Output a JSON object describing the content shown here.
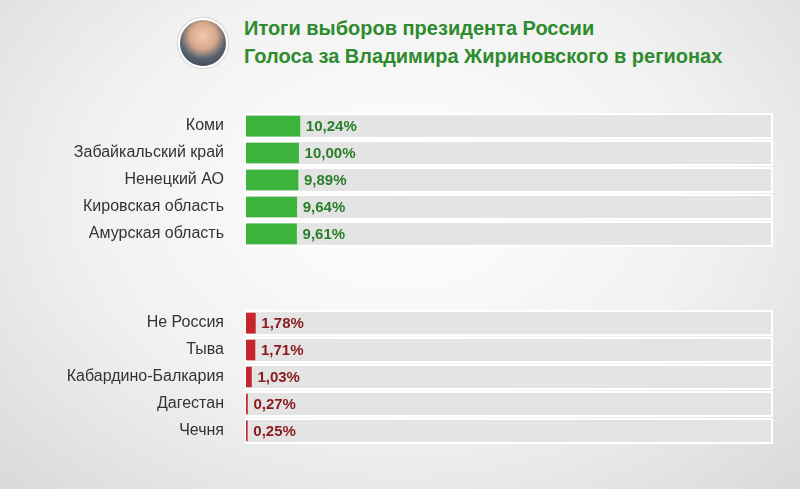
{
  "chart_data": {
    "type": "bar",
    "orientation": "horizontal",
    "title": "Итоги выборов президента России",
    "subtitle": "Голоса за Владимира Жириновского в регионах",
    "categories": [
      "Коми",
      "Забайкальский край",
      "Ненецкий АО",
      "Кировская область",
      "Амурская область",
      "Не Россия",
      "Тыва",
      "Кабардино-Балкария",
      "Дагестан",
      "Чечня"
    ],
    "values": [
      10.24,
      10.0,
      9.89,
      9.64,
      9.61,
      1.78,
      1.71,
      1.03,
      0.27,
      0.25
    ],
    "value_labels": [
      "10,24%",
      "10,00%",
      "9,89%",
      "9,64%",
      "9,61%",
      "1,78%",
      "1,71%",
      "1,03%",
      "0,27%",
      "0,25%"
    ],
    "colors": [
      "#3cb43c",
      "#3cb43c",
      "#3cb43c",
      "#3cb43c",
      "#3cb43c",
      "#c4262c",
      "#c4262c",
      "#c4262c",
      "#c4262c",
      "#c4262c"
    ],
    "xlim": [
      0,
      100
    ],
    "grid": false,
    "data_labels": true,
    "tick_labels": "y"
  }
}
